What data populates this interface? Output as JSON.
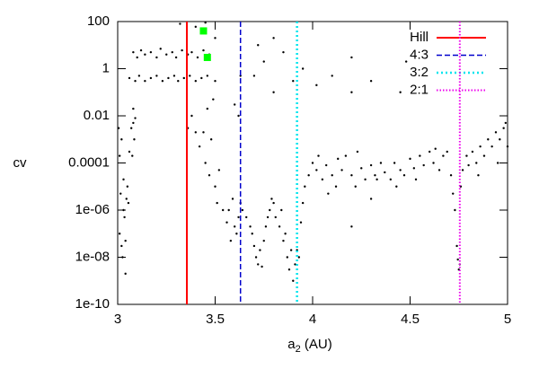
{
  "chart_data": {
    "type": "scatter",
    "y_label": "cv",
    "x_label": {
      "base": "a",
      "subscript": "2",
      "unit": " (AU)"
    },
    "xlim": [
      3,
      5
    ],
    "xticks": [
      3,
      3.5,
      4,
      4.5,
      5
    ],
    "ylim": [
      1e-10,
      100
    ],
    "ylog": true,
    "yticks": [
      {
        "value": 1e-10,
        "label": "1e-10"
      },
      {
        "value": 1e-08,
        "label": "1e-08"
      },
      {
        "value": 1e-06,
        "label": "1e-06"
      },
      {
        "value": 0.0001,
        "label": "0.0001"
      },
      0.01,
      1,
      100
    ],
    "points": {
      "color": "#000000",
      "x": [
        3.01,
        3.02,
        3.015,
        3.03,
        3.02,
        3.005,
        3.04,
        3.035,
        3.025,
        3.045,
        3.01,
        3.03,
        3.04,
        3.05,
        3.06,
        3.055,
        3.07,
        3.08,
        3.085,
        3.075,
        3.09,
        3.08,
        3.08,
        3.1,
        3.12,
        3.14,
        3.17,
        3.2,
        3.22,
        3.25,
        3.28,
        3.3,
        3.33,
        3.36,
        3.38,
        3.41,
        3.44,
        3.47,
        3.06,
        3.09,
        3.11,
        3.14,
        3.17,
        3.2,
        3.23,
        3.26,
        3.29,
        3.31,
        3.34,
        3.37,
        3.4,
        3.43,
        3.46,
        3.5,
        3.32,
        3.4,
        3.45,
        3.5,
        3.36,
        3.38,
        3.4,
        3.42,
        3.44,
        3.45,
        3.47,
        3.48,
        3.5,
        3.51,
        3.52,
        3.54,
        3.46,
        3.49,
        3.56,
        3.57,
        3.58,
        3.6,
        3.61,
        3.62,
        3.59,
        3.63,
        3.64,
        3.62,
        3.63,
        3.6,
        3.66,
        3.68,
        3.7,
        3.72,
        3.73,
        3.71,
        3.75,
        3.76,
        3.78,
        3.79,
        3.8,
        3.69,
        3.74,
        3.77,
        3.81,
        3.83,
        3.85,
        3.87,
        3.88,
        3.9,
        3.91,
        3.89,
        3.93,
        3.94,
        3.95,
        3.96,
        3.86,
        3.84,
        3.92,
        3.7,
        3.75,
        3.8,
        3.85,
        3.9,
        3.95,
        4.02,
        4.2,
        4.3,
        4.1,
        3.72,
        3.8,
        4.2,
        4.45,
        4.48,
        3.98,
        4.0,
        4.02,
        4.05,
        4.07,
        4.1,
        4.12,
        4.15,
        4.17,
        4.2,
        4.22,
        4.25,
        4.27,
        4.3,
        4.32,
        4.35,
        4.37,
        4.4,
        4.42,
        4.45,
        4.47,
        4.5,
        4.52,
        4.55,
        4.57,
        4.6,
        4.62,
        4.65,
        4.67,
        4.69,
        4.03,
        4.13,
        4.23,
        4.33,
        4.43,
        4.53,
        4.63,
        4.08,
        4.2,
        4.3,
        4.71,
        4.72,
        4.73,
        4.74,
        4.745,
        4.75,
        4.755,
        4.76,
        4.77,
        4.79,
        4.8,
        4.82,
        4.84,
        4.86,
        4.88,
        4.9,
        4.92,
        4.94,
        4.96,
        4.98,
        5.0,
        4.85,
        4.95,
        4.99
      ],
      "values": [
        1e-07,
        3e-08,
        5e-06,
        2e-05,
        0.001,
        0.003,
        2e-09,
        5e-07,
        1e-08,
        3e-06,
        0.0002,
        1e-06,
        5e-08,
        1e-05,
        0.0003,
        2e-06,
        0.003,
        0.005,
        0.001,
        0.0002,
        0.008,
        0.02,
        5,
        3,
        6,
        4,
        5,
        3,
        7,
        4,
        5,
        3,
        6,
        4,
        5,
        3,
        6,
        4,
        0.4,
        0.3,
        0.5,
        0.3,
        0.4,
        0.5,
        0.3,
        0.4,
        0.5,
        0.3,
        0.4,
        0.5,
        0.3,
        0.4,
        0.5,
        0.3,
        80,
        60,
        90,
        20,
        0.003,
        0.01,
        0.002,
        0.0005,
        0.002,
        0.0001,
        3e-05,
        0.001,
        1e-05,
        2e-06,
        5e-05,
        1e-06,
        0.02,
        0.05,
        3e-07,
        1e-06,
        5e-08,
        2e-07,
        1e-07,
        5e-07,
        3e-06,
        2e-06,
        1e-06,
        0.01,
        0.5,
        0.03,
        5e-07,
        2e-07,
        3e-08,
        5e-09,
        2e-08,
        1e-08,
        5e-08,
        2e-07,
        1e-06,
        3e-06,
        2e-06,
        1e-07,
        4e-09,
        5e-07,
        5e-07,
        2e-07,
        5e-08,
        1e-08,
        3e-09,
        1e-09,
        5e-09,
        2e-08,
        1e-08,
        3e-07,
        2e-06,
        1e-05,
        1e-07,
        1e-06,
        2e-08,
        0.5,
        2,
        0.1,
        5,
        0.3,
        1,
        0.2,
        3,
        0.3,
        0.5,
        10,
        20,
        0.1,
        0.1,
        2,
        3e-05,
        0.0001,
        5e-05,
        2e-05,
        8e-05,
        3e-05,
        1e-05,
        5e-05,
        0.0002,
        3e-05,
        1e-05,
        6e-05,
        2e-05,
        8e-05,
        3e-05,
        0.0001,
        4e-05,
        2e-05,
        0.0001,
        5e-05,
        3e-05,
        0.00015,
        6e-05,
        0.0002,
        8e-05,
        0.0003,
        0.0001,
        5e-05,
        0.0002,
        0.0003,
        0.0002,
        0.00015,
        0.0003,
        2e-05,
        1e-05,
        2e-05,
        0.0004,
        5e-06,
        2e-07,
        3e-06,
        3e-05,
        5e-06,
        1e-06,
        3e-08,
        8e-09,
        3e-09,
        5e-09,
        1e-05,
        5e-05,
        0.0002,
        8e-05,
        0.0003,
        0.0001,
        0.0005,
        0.0002,
        0.001,
        0.0005,
        0.002,
        0.001,
        0.003,
        0.0005,
        3e-05,
        0.0001,
        0.005
      ]
    },
    "highlights": {
      "color": "#00ff00",
      "x": [
        3.44,
        3.46
      ],
      "values": [
        40,
        3
      ]
    },
    "vlines": [
      {
        "name": "Hill",
        "x": 3.355,
        "color": "#ff0000",
        "dash": "solid"
      },
      {
        "name": "4:3",
        "x": 3.63,
        "color": "#0000cc",
        "dash": "dashed"
      },
      {
        "name": "3:2",
        "x": 3.92,
        "color": "#00e5ee",
        "dash": "dotted"
      },
      {
        "name": "2:1",
        "x": 4.755,
        "color": "#ee00ee",
        "dash": "fine-dotted"
      }
    ]
  }
}
